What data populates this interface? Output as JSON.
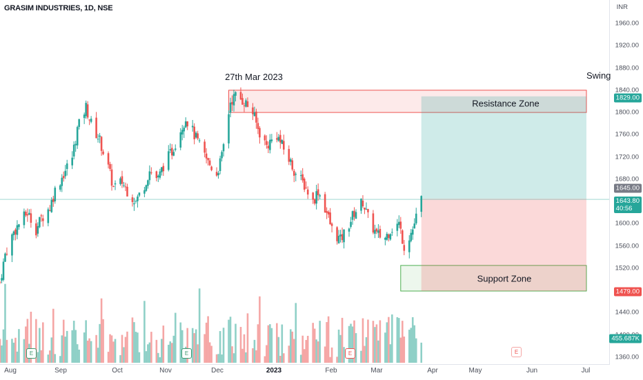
{
  "header": {
    "title": "GRASIM INDUSTRIES, 1D, NSE",
    "currency": "INR"
  },
  "colors": {
    "up": "#26a69a",
    "down": "#ef5350",
    "volume_up": "#8fd0c7",
    "volume_down": "#f5a6a5",
    "resistance_fill": "rgba(239,83,80,0.12)",
    "profit_fill": "rgba(38,166,154,0.22)",
    "loss_fill": "rgba(239,83,80,0.22)",
    "support_fill": "rgba(76,175,80,0.10)"
  },
  "annotations": {
    "date_label": "27th Mar 2023",
    "resistance_label": "Resistance Zone",
    "support_label": "Support Zone",
    "swing_label": "Swing"
  },
  "price_tags": {
    "target": "1829.00",
    "entry": "1645.00",
    "last": "1643.80",
    "countdown": "40:56",
    "stop": "1479.00",
    "volume": "455.687K"
  },
  "chart_data": {
    "type": "candlestick",
    "title": "GRASIM INDUSTRIES, 1D, NSE",
    "y_unit": "INR",
    "ylim": [
      1350,
      1990
    ],
    "y_ticks": [
      "1960.00",
      "1920.00",
      "1880.00",
      "1840.00",
      "1800.00",
      "1760.00",
      "1720.00",
      "1680.00",
      "1640.00",
      "1600.00",
      "1560.00",
      "1520.00",
      "1480.00",
      "1440.00",
      "1400.00",
      "1360.00"
    ],
    "x_ticks": [
      "Aug",
      "Sep",
      "Oct",
      "Nov",
      "Dec",
      "2023",
      "Feb",
      "Mar",
      "Apr",
      "May",
      "Jun",
      "Jul"
    ],
    "close_path": [
      [
        "2022-07-25",
        1495
      ],
      [
        "2022-07-28",
        1545
      ],
      [
        "2022-08-02",
        1585
      ],
      [
        "2022-08-05",
        1600
      ],
      [
        "2022-08-10",
        1620
      ],
      [
        "2022-08-15",
        1590
      ],
      [
        "2022-08-18",
        1610
      ],
      [
        "2022-08-23",
        1630
      ],
      [
        "2022-08-26",
        1660
      ],
      [
        "2022-08-31",
        1690
      ],
      [
        "2022-09-05",
        1720
      ],
      [
        "2022-09-08",
        1770
      ],
      [
        "2022-09-13",
        1810
      ],
      [
        "2022-09-16",
        1780
      ],
      [
        "2022-09-21",
        1750
      ],
      [
        "2022-09-26",
        1700
      ],
      [
        "2022-09-29",
        1665
      ],
      [
        "2022-10-04",
        1675
      ],
      [
        "2022-10-07",
        1660
      ],
      [
        "2022-10-12",
        1640
      ],
      [
        "2022-10-17",
        1670
      ],
      [
        "2022-10-20",
        1695
      ],
      [
        "2022-10-25",
        1680
      ],
      [
        "2022-10-28",
        1705
      ],
      [
        "2022-11-02",
        1730
      ],
      [
        "2022-11-07",
        1770
      ],
      [
        "2022-11-10",
        1790
      ],
      [
        "2022-11-15",
        1760
      ],
      [
        "2022-11-18",
        1740
      ],
      [
        "2022-11-23",
        1710
      ],
      [
        "2022-11-28",
        1690
      ],
      [
        "2022-12-01",
        1720
      ],
      [
        "2022-12-06",
        1820
      ],
      [
        "2022-12-09",
        1830
      ],
      [
        "2022-12-14",
        1820
      ],
      [
        "2022-12-19",
        1800
      ],
      [
        "2022-12-22",
        1770
      ],
      [
        "2022-12-27",
        1740
      ],
      [
        "2023-01-02",
        1760
      ],
      [
        "2023-01-05",
        1740
      ],
      [
        "2023-01-10",
        1710
      ],
      [
        "2023-01-13",
        1690
      ],
      [
        "2023-01-18",
        1670
      ],
      [
        "2023-01-23",
        1640
      ],
      [
        "2023-01-26",
        1660
      ],
      [
        "2023-01-31",
        1620
      ],
      [
        "2023-02-03",
        1590
      ],
      [
        "2023-02-08",
        1570
      ],
      [
        "2023-02-13",
        1600
      ],
      [
        "2023-02-16",
        1620
      ],
      [
        "2023-02-21",
        1640
      ],
      [
        "2023-02-24",
        1610
      ],
      [
        "2023-03-01",
        1580
      ],
      [
        "2023-03-06",
        1575
      ],
      [
        "2023-03-09",
        1590
      ],
      [
        "2023-03-14",
        1600
      ],
      [
        "2023-03-17",
        1560
      ],
      [
        "2023-03-22",
        1590
      ],
      [
        "2023-03-27",
        1643.8
      ]
    ],
    "zones": {
      "resistance": {
        "label": "Resistance Zone",
        "low": 1800,
        "high": 1840,
        "from": "2022-12-05",
        "to": "2023-07-01"
      },
      "support": {
        "label": "Support Zone",
        "low": 1479,
        "high": 1525,
        "from": "2023-03-15",
        "to": "2023-07-01"
      }
    },
    "position": {
      "type": "long",
      "entry": 1645,
      "target": 1829,
      "stop": 1479,
      "from": "2023-03-27",
      "to": "2023-07-01"
    },
    "current_price": 1643.8,
    "volume_last": "455.687K"
  }
}
